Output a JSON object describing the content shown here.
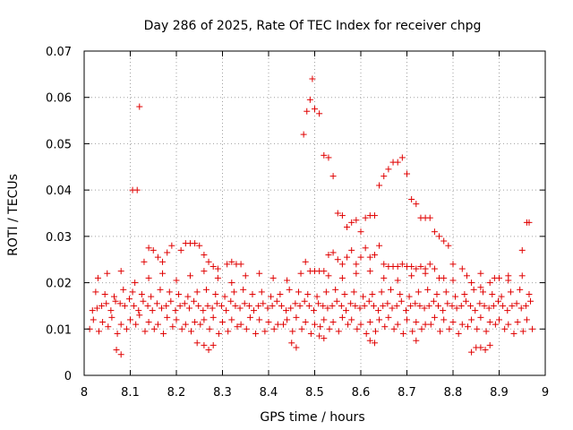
{
  "chart_data": {
    "type": "scatter",
    "title": "Day 286 of 2025, Rate Of TEC Index for receiver chpg",
    "xlabel": "GPS time / hours",
    "ylabel": "ROTI / TECUs",
    "xlim": [
      8,
      9
    ],
    "ylim": [
      0,
      0.07
    ],
    "xticks": [
      "8",
      "8.1",
      "8.2",
      "8.3",
      "8.4",
      "8.5",
      "8.6",
      "8.7",
      "8.8",
      "8.9",
      "9"
    ],
    "yticks": [
      "0",
      "0.01",
      "0.02",
      "0.03",
      "0.04",
      "0.05",
      "0.06",
      "0.07"
    ],
    "grid": true,
    "marker": "+",
    "color": "#e00000",
    "series": [
      {
        "name": "ROTI",
        "x": [
          8.018,
          8.028,
          8.038,
          8.048,
          8.058,
          8.068,
          8.078,
          8.088,
          8.098,
          8.108,
          8.118,
          8.128,
          8.138,
          8.148,
          8.158,
          8.168,
          8.178,
          8.188,
          8.198,
          8.208,
          8.218,
          8.228,
          8.238,
          8.248,
          8.258,
          8.268,
          8.278,
          8.288,
          8.298,
          8.308,
          8.318,
          8.328,
          8.338,
          8.348,
          8.358,
          8.368,
          8.378,
          8.388,
          8.398,
          8.408,
          8.418,
          8.428,
          8.438,
          8.448,
          8.458,
          8.468,
          8.478,
          8.488,
          8.498,
          8.508,
          8.518,
          8.528,
          8.538,
          8.548,
          8.558,
          8.568,
          8.578,
          8.588,
          8.598,
          8.608,
          8.618,
          8.628,
          8.638,
          8.648,
          8.658,
          8.668,
          8.678,
          8.688,
          8.698,
          8.708,
          8.718,
          8.728,
          8.738,
          8.748,
          8.758,
          8.768,
          8.778,
          8.788,
          8.798,
          8.808,
          8.818,
          8.828,
          8.838,
          8.848,
          8.858,
          8.868,
          8.878,
          8.888,
          8.898,
          8.908,
          8.918,
          8.928,
          8.938,
          8.948,
          8.958,
          8.968,
          8.02,
          8.04,
          8.06,
          8.08,
          8.1,
          8.12,
          8.14,
          8.16,
          8.18,
          8.2,
          8.22,
          8.24,
          8.26,
          8.28,
          8.3,
          8.32,
          8.34,
          8.36,
          8.38,
          8.4,
          8.42,
          8.44,
          8.46,
          8.48,
          8.5,
          8.52,
          8.54,
          8.56,
          8.58,
          8.6,
          8.62,
          8.64,
          8.66,
          8.68,
          8.7,
          8.72,
          8.74,
          8.76,
          8.78,
          8.8,
          8.82,
          8.84,
          8.86,
          8.88,
          8.9,
          8.92,
          8.94,
          8.96,
          8.025,
          8.045,
          8.065,
          8.085,
          8.105,
          8.125,
          8.145,
          8.165,
          8.185,
          8.205,
          8.225,
          8.245,
          8.265,
          8.285,
          8.305,
          8.325,
          8.345,
          8.365,
          8.385,
          8.405,
          8.425,
          8.445,
          8.465,
          8.485,
          8.505,
          8.525,
          8.545,
          8.565,
          8.585,
          8.605,
          8.625,
          8.645,
          8.665,
          8.685,
          8.705,
          8.725,
          8.745,
          8.765,
          8.785,
          8.805,
          8.825,
          8.845,
          8.865,
          8.885,
          8.905,
          8.925,
          8.945,
          8.965,
          8.012,
          8.032,
          8.052,
          8.072,
          8.092,
          8.112,
          8.132,
          8.152,
          8.172,
          8.192,
          8.212,
          8.232,
          8.252,
          8.272,
          8.292,
          8.312,
          8.332,
          8.352,
          8.372,
          8.392,
          8.412,
          8.432,
          8.452,
          8.472,
          8.492,
          8.512,
          8.532,
          8.552,
          8.572,
          8.592,
          8.612,
          8.632,
          8.652,
          8.672,
          8.692,
          8.712,
          8.732,
          8.752,
          8.772,
          8.792,
          8.812,
          8.832,
          8.852,
          8.872,
          8.892,
          8.912,
          8.932,
          8.952,
          8.972,
          8.03,
          8.05,
          8.08,
          8.11,
          8.14,
          8.17,
          8.2,
          8.23,
          8.26,
          8.29,
          8.32,
          8.35,
          8.38,
          8.41,
          8.44,
          8.47,
          8.53,
          8.56,
          8.59,
          8.62,
          8.65,
          8.68,
          8.71,
          8.74,
          8.77,
          8.8,
          8.83,
          8.86,
          8.89,
          8.92,
          8.95,
          8.105,
          8.115,
          8.12,
          8.13,
          8.14,
          8.15,
          8.16,
          8.17,
          8.18,
          8.19,
          8.21,
          8.22,
          8.23,
          8.24,
          8.25,
          8.26,
          8.27,
          8.28,
          8.29,
          8.31,
          8.32,
          8.33,
          8.34,
          8.476,
          8.483,
          8.49,
          8.495,
          8.5,
          8.51,
          8.52,
          8.53,
          8.54,
          8.55,
          8.56,
          8.57,
          8.58,
          8.59,
          8.6,
          8.61,
          8.62,
          8.63,
          8.64,
          8.65,
          8.66,
          8.67,
          8.68,
          8.69,
          8.7,
          8.71,
          8.72,
          8.73,
          8.74,
          8.75,
          8.76,
          8.77,
          8.78,
          8.79,
          8.48,
          8.49,
          8.5,
          8.51,
          8.52,
          8.53,
          8.54,
          8.55,
          8.56,
          8.57,
          8.58,
          8.59,
          8.6,
          8.61,
          8.62,
          8.63,
          8.64,
          8.65,
          8.66,
          8.67,
          8.68,
          8.69,
          8.7,
          8.71,
          8.72,
          8.73,
          8.74,
          8.75,
          8.76,
          8.78,
          8.8,
          8.82,
          8.84,
          8.86,
          8.88,
          8.9,
          8.92,
          8.95,
          8.96,
          8.965,
          8.07,
          8.08,
          8.245,
          8.26,
          8.27,
          8.28,
          8.45,
          8.46,
          8.51,
          8.52,
          8.62,
          8.63,
          8.72,
          8.84,
          8.85,
          8.86,
          8.87,
          8.88
        ],
        "y": [
          0.014,
          0.0145,
          0.015,
          0.0155,
          0.014,
          0.016,
          0.0155,
          0.015,
          0.0165,
          0.015,
          0.014,
          0.016,
          0.015,
          0.014,
          0.0155,
          0.0145,
          0.015,
          0.016,
          0.014,
          0.015,
          0.0155,
          0.0145,
          0.016,
          0.015,
          0.014,
          0.015,
          0.0145,
          0.0155,
          0.015,
          0.014,
          0.016,
          0.015,
          0.0145,
          0.0155,
          0.015,
          0.014,
          0.015,
          0.0155,
          0.0145,
          0.015,
          0.016,
          0.015,
          0.014,
          0.0145,
          0.0155,
          0.015,
          0.016,
          0.015,
          0.014,
          0.0155,
          0.015,
          0.0145,
          0.015,
          0.016,
          0.015,
          0.014,
          0.0155,
          0.015,
          0.0145,
          0.015,
          0.016,
          0.015,
          0.014,
          0.015,
          0.0155,
          0.0145,
          0.015,
          0.016,
          0.014,
          0.015,
          0.0155,
          0.015,
          0.0145,
          0.015,
          0.016,
          0.015,
          0.014,
          0.0155,
          0.015,
          0.0145,
          0.015,
          0.016,
          0.015,
          0.014,
          0.0155,
          0.015,
          0.0145,
          0.015,
          0.016,
          0.015,
          0.014,
          0.015,
          0.0155,
          0.0145,
          0.015,
          0.016,
          0.012,
          0.0115,
          0.0125,
          0.011,
          0.012,
          0.013,
          0.0115,
          0.011,
          0.0125,
          0.012,
          0.011,
          0.0115,
          0.012,
          0.0125,
          0.0115,
          0.012,
          0.011,
          0.0125,
          0.012,
          0.0115,
          0.011,
          0.012,
          0.0125,
          0.0115,
          0.011,
          0.012,
          0.0115,
          0.0125,
          0.012,
          0.011,
          0.0115,
          0.012,
          0.0125,
          0.011,
          0.012,
          0.0115,
          0.011,
          0.0125,
          0.012,
          0.0115,
          0.011,
          0.012,
          0.0125,
          0.0115,
          0.012,
          0.011,
          0.0115,
          0.012,
          0.018,
          0.0175,
          0.017,
          0.0185,
          0.018,
          0.0175,
          0.017,
          0.0185,
          0.018,
          0.0175,
          0.017,
          0.018,
          0.0185,
          0.0175,
          0.017,
          0.018,
          0.0185,
          0.0175,
          0.018,
          0.017,
          0.0175,
          0.0185,
          0.018,
          0.0175,
          0.017,
          0.018,
          0.0185,
          0.0175,
          0.018,
          0.017,
          0.0175,
          0.018,
          0.0185,
          0.0175,
          0.017,
          0.018,
          0.0185,
          0.0175,
          0.018,
          0.017,
          0.0175,
          0.0185,
          0.018,
          0.0175,
          0.017,
          0.018,
          0.0185,
          0.0175,
          0.01,
          0.0095,
          0.0105,
          0.009,
          0.01,
          0.011,
          0.0095,
          0.01,
          0.009,
          0.0105,
          0.01,
          0.0095,
          0.011,
          0.01,
          0.009,
          0.0095,
          0.0105,
          0.01,
          0.009,
          0.0095,
          0.01,
          0.011,
          0.0095,
          0.01,
          0.009,
          0.0105,
          0.01,
          0.0095,
          0.011,
          0.01,
          0.009,
          0.0095,
          0.0105,
          0.01,
          0.009,
          0.0095,
          0.01,
          0.011,
          0.0095,
          0.01,
          0.009,
          0.0105,
          0.01,
          0.0095,
          0.011,
          0.01,
          0.009,
          0.0095,
          0.01,
          0.021,
          0.022,
          0.0225,
          0.02,
          0.021,
          0.022,
          0.0205,
          0.0215,
          0.0225,
          0.021,
          0.02,
          0.0215,
          0.022,
          0.021,
          0.0205,
          0.022,
          0.0215,
          0.021,
          0.022,
          0.0225,
          0.021,
          0.0205,
          0.0215,
          0.022,
          0.021,
          0.0205,
          0.0215,
          0.022,
          0.021,
          0.0205,
          0.0215,
          0.04,
          0.04,
          0.058,
          0.0245,
          0.0275,
          0.027,
          0.0255,
          0.0245,
          0.0265,
          0.028,
          0.027,
          0.0285,
          0.0285,
          0.0285,
          0.028,
          0.026,
          0.0245,
          0.0235,
          0.023,
          0.024,
          0.0245,
          0.024,
          0.024,
          0.052,
          0.057,
          0.0595,
          0.064,
          0.0575,
          0.0565,
          0.0475,
          0.047,
          0.043,
          0.035,
          0.0345,
          0.032,
          0.033,
          0.0335,
          0.031,
          0.034,
          0.0345,
          0.0345,
          0.041,
          0.043,
          0.0445,
          0.046,
          0.046,
          0.047,
          0.0435,
          0.038,
          0.037,
          0.034,
          0.034,
          0.034,
          0.031,
          0.03,
          0.029,
          0.028,
          0.0245,
          0.0225,
          0.0225,
          0.0225,
          0.0225,
          0.026,
          0.0265,
          0.025,
          0.024,
          0.0255,
          0.027,
          0.024,
          0.0255,
          0.0275,
          0.0255,
          0.026,
          0.028,
          0.024,
          0.0235,
          0.0235,
          0.0235,
          0.024,
          0.0235,
          0.0235,
          0.023,
          0.0235,
          0.023,
          0.024,
          0.023,
          0.021,
          0.024,
          0.023,
          0.02,
          0.019,
          0.02,
          0.021,
          0.0215,
          0.027,
          0.033,
          0.033,
          0.0055,
          0.0045,
          0.007,
          0.0065,
          0.0055,
          0.0065,
          0.007,
          0.006,
          0.0085,
          0.008,
          0.0075,
          0.007,
          0.0075,
          0.005,
          0.006,
          0.006,
          0.0055,
          0.0065
        ]
      }
    ]
  }
}
